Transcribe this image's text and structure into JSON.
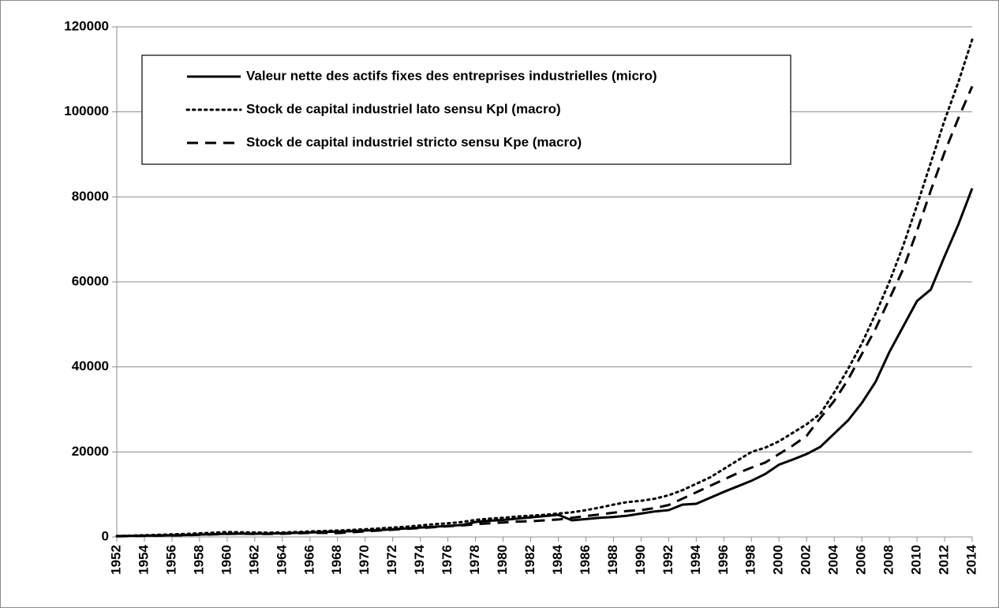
{
  "chart_data": {
    "type": "line",
    "x": [
      1952,
      1953,
      1954,
      1955,
      1956,
      1957,
      1958,
      1959,
      1960,
      1961,
      1962,
      1963,
      1964,
      1965,
      1966,
      1967,
      1968,
      1969,
      1970,
      1971,
      1972,
      1973,
      1974,
      1975,
      1976,
      1977,
      1978,
      1979,
      1980,
      1981,
      1982,
      1983,
      1984,
      1985,
      1986,
      1987,
      1988,
      1989,
      1990,
      1991,
      1992,
      1993,
      1994,
      1995,
      1996,
      1997,
      1998,
      1999,
      2000,
      2001,
      2002,
      2003,
      2004,
      2005,
      2006,
      2007,
      2008,
      2009,
      2010,
      2011,
      2012,
      2013,
      2014
    ],
    "series": [
      {
        "name": "Valeur nette des actifs fixes des entreprises industrielles (micro)",
        "color": "#000000",
        "style": "solid",
        "values": [
          200,
          250,
          300,
          350,
          400,
          450,
          550,
          650,
          750,
          800,
          750,
          800,
          850,
          950,
          1050,
          1150,
          1250,
          1350,
          1500,
          1600,
          1800,
          2000,
          2200,
          2400,
          2600,
          2800,
          3500,
          3800,
          4000,
          4300,
          4600,
          4900,
          5200,
          3900,
          4200,
          4500,
          4700,
          5000,
          5500,
          6000,
          6300,
          7600,
          7800,
          9200,
          10600,
          11900,
          13200,
          14800,
          17000,
          18200,
          19500,
          21200,
          24300,
          27400,
          31500,
          36500,
          43500,
          49500,
          55500,
          58200,
          66000,
          73500,
          82000
        ]
      },
      {
        "name": "Stock de capital industriel lato sensu Kpl (macro)",
        "color": "#000000",
        "style": "dotted",
        "values": [
          200,
          300,
          400,
          500,
          600,
          700,
          850,
          1000,
          1150,
          1100,
          1050,
          1000,
          1050,
          1150,
          1300,
          1400,
          1500,
          1650,
          1800,
          2000,
          2200,
          2400,
          2700,
          3000,
          3200,
          3500,
          4000,
          4300,
          4500,
          4800,
          5000,
          5200,
          5500,
          5800,
          6300,
          6900,
          7600,
          8200,
          8500,
          9000,
          9800,
          11000,
          12500,
          14000,
          16000,
          18000,
          20000,
          21000,
          22500,
          24500,
          26500,
          29000,
          34000,
          39500,
          45500,
          52500,
          60000,
          68500,
          78000,
          88000,
          98000,
          107000,
          117000
        ]
      },
      {
        "name": "Stock de capital industriel stricto sensu Kpe (macro)",
        "color": "#000000",
        "style": "dashed",
        "values": [
          150,
          200,
          250,
          300,
          350,
          400,
          500,
          600,
          700,
          750,
          700,
          700,
          750,
          850,
          950,
          950,
          900,
          1100,
          1300,
          1500,
          1700,
          1900,
          2100,
          2300,
          2500,
          2700,
          3000,
          3200,
          3400,
          3600,
          3700,
          3900,
          4100,
          4500,
          4900,
          5300,
          5700,
          6100,
          6300,
          6800,
          7500,
          9000,
          10500,
          12000,
          13500,
          15000,
          16300,
          17500,
          19500,
          21500,
          23800,
          28000,
          32000,
          37000,
          43000,
          49000,
          56000,
          63000,
          72000,
          81500,
          90500,
          98500,
          106000
        ]
      }
    ],
    "xlim": [
      1952,
      2014
    ],
    "xticks": [
      1952,
      1954,
      1956,
      1958,
      1960,
      1962,
      1964,
      1966,
      1968,
      1970,
      1972,
      1974,
      1976,
      1978,
      1980,
      1982,
      1984,
      1986,
      1988,
      1990,
      1992,
      1994,
      1996,
      1998,
      2000,
      2002,
      2004,
      2006,
      2008,
      2010,
      2012,
      2014
    ],
    "ylim": [
      0,
      120000
    ],
    "yticks": [
      0,
      20000,
      40000,
      60000,
      80000,
      100000,
      120000
    ],
    "grid": true,
    "legend": "top-left"
  }
}
